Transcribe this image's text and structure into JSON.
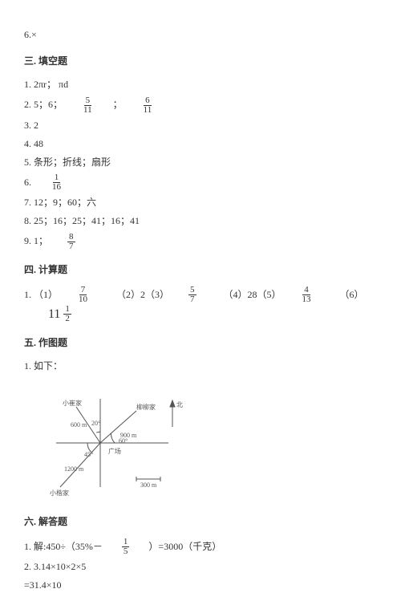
{
  "top": {
    "six_x": "6.×"
  },
  "sec3": {
    "title": "三. 填空题",
    "l1": "1. 2πr；  πd",
    "l2a": "2. 5；6；",
    "l2b_num": "5",
    "l2b_den": "11",
    "l2c": "；",
    "l2d_num": "6",
    "l2d_den": "11",
    "l3": "3. 2",
    "l4": "4. 48",
    "l5": "5. 条形；折线；扇形",
    "l6a": "6. ",
    "l6_num": "1",
    "l6_den": "16",
    "l7": "7. 12；9；60；六",
    "l8": "8. 25；16；25；41；16；41",
    "l9a": "9. 1；",
    "l9_num": "8",
    "l9_den": "7"
  },
  "sec4": {
    "title": "四. 计算题",
    "p1": "1. （1）",
    "a1_num": "7",
    "a1_den": "10",
    "p2": "（2）2（3）",
    "a3_num": "5",
    "a3_den": "7",
    "p4": "（4）28（5）",
    "a5_num": "4",
    "a5_den": "13",
    "p6": "（6）",
    "a6_whole": "11",
    "a6_num": "1",
    "a6_den": "2"
  },
  "sec5": {
    "title": "五. 作图题",
    "l1": "1. 如下："
  },
  "diagram": {
    "labels": {
      "xiaocui": "小崔家",
      "liuliu": "柳柳家",
      "xiaokai": "小楷家",
      "d600": "600 m",
      "d900": "900 m",
      "d1200": "1200 m",
      "guang": "广场",
      "scale": "300 m",
      "bei": "北",
      "a20": "20°",
      "a45": "45°",
      "a60": "60°"
    },
    "style": {
      "stroke": "#555",
      "text_color": "#555",
      "font_size": 8
    }
  },
  "sec6": {
    "title": "六. 解答题",
    "l1a": "1. 解:450÷（35%－",
    "l1_num": "1",
    "l1_den": "5",
    "l1b": "）=3000（千克）",
    "l2": "2. 3.14×10×2×5",
    "l3": "=31.4×10"
  }
}
